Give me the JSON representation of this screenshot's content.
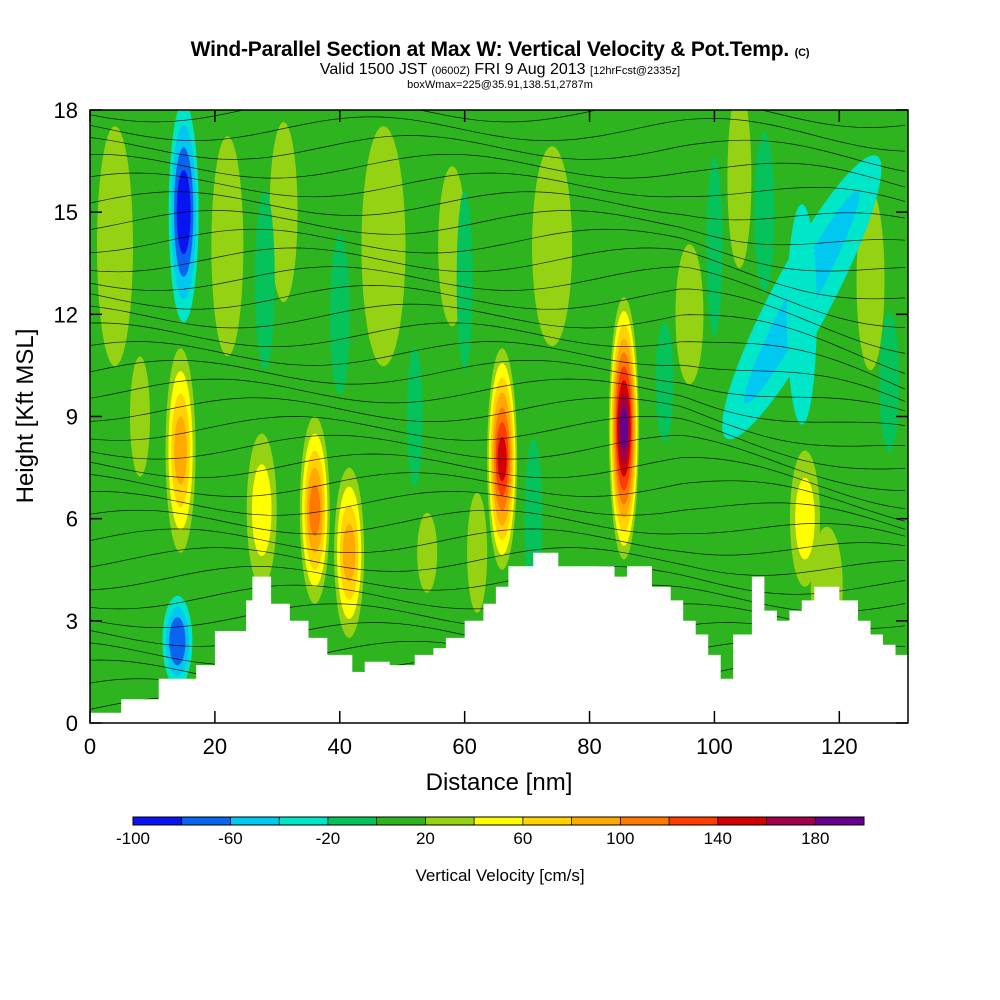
{
  "header": {
    "title": "Wind-Parallel Section at Max W: Vertical Velocity & Pot.Temp.",
    "copyright": "(C)",
    "valid_prefix": "Valid 1500 JST",
    "valid_utc": "(0600Z)",
    "valid_date": "FRI 9 Aug 2013",
    "forecast": "[12hrFcst@2335z]",
    "box_info": "boxWmax=225@35.91,138.51,2787m"
  },
  "chart_data": {
    "type": "heatmap",
    "xlabel": "Distance [nm]",
    "ylabel": "Height [Kft MSL]",
    "xlim": [
      0,
      131
    ],
    "ylim": [
      0,
      18
    ],
    "x_ticks": [
      "0",
      "20",
      "40",
      "60",
      "80",
      "100",
      "120"
    ],
    "y_ticks": [
      "0",
      "3",
      "6",
      "9",
      "12",
      "15",
      "18"
    ],
    "colorbar": {
      "label": "Vertical Velocity [cm/s]",
      "bounds": [
        -100,
        200
      ],
      "tick_labels": [
        "-100",
        "-60",
        "-20",
        "20",
        "60",
        "100",
        "140",
        "180"
      ],
      "colors": [
        "#0a14f0",
        "#0a64f0",
        "#00c8f0",
        "#00e6c8",
        "#05c35a",
        "#2db41e",
        "#96d214",
        "#ffff00",
        "#ffd200",
        "#ffaa00",
        "#ff7800",
        "#ff3c00",
        "#d20000",
        "#a00046",
        "#64008c"
      ]
    },
    "terrain": [
      [
        0,
        0.3
      ],
      [
        5,
        0.3
      ],
      [
        5,
        0.7
      ],
      [
        11,
        0.7
      ],
      [
        11,
        1.3
      ],
      [
        17,
        1.3
      ],
      [
        17,
        1.7
      ],
      [
        20,
        1.7
      ],
      [
        20,
        2.7
      ],
      [
        25,
        2.7
      ],
      [
        25,
        3.6
      ],
      [
        26,
        3.6
      ],
      [
        26,
        4.3
      ],
      [
        29,
        4.3
      ],
      [
        29,
        3.5
      ],
      [
        32,
        3.5
      ],
      [
        32,
        3.0
      ],
      [
        35,
        3.0
      ],
      [
        35,
        2.5
      ],
      [
        38,
        2.5
      ],
      [
        38,
        2.0
      ],
      [
        42,
        2.0
      ],
      [
        42,
        1.5
      ],
      [
        44,
        1.5
      ],
      [
        44,
        1.8
      ],
      [
        48,
        1.8
      ],
      [
        48,
        1.7
      ],
      [
        52,
        1.7
      ],
      [
        52,
        2.0
      ],
      [
        55,
        2.0
      ],
      [
        55,
        2.2
      ],
      [
        57,
        2.2
      ],
      [
        57,
        2.5
      ],
      [
        60,
        2.5
      ],
      [
        60,
        3.0
      ],
      [
        63,
        3.0
      ],
      [
        63,
        3.5
      ],
      [
        65,
        3.5
      ],
      [
        65,
        4.0
      ],
      [
        67,
        4.0
      ],
      [
        67,
        4.6
      ],
      [
        71,
        4.6
      ],
      [
        71,
        5.0
      ],
      [
        75,
        5.0
      ],
      [
        75,
        4.6
      ],
      [
        84,
        4.6
      ],
      [
        84,
        4.3
      ],
      [
        86,
        4.3
      ],
      [
        86,
        4.6
      ],
      [
        90,
        4.6
      ],
      [
        90,
        4.0
      ],
      [
        93,
        4.0
      ],
      [
        93,
        3.6
      ],
      [
        95,
        3.6
      ],
      [
        95,
        3.0
      ],
      [
        97,
        3.0
      ],
      [
        97,
        2.6
      ],
      [
        99,
        2.6
      ],
      [
        99,
        2.0
      ],
      [
        101,
        2.0
      ],
      [
        101,
        1.3
      ],
      [
        103,
        1.3
      ],
      [
        103,
        2.6
      ],
      [
        106,
        2.6
      ],
      [
        106,
        4.3
      ],
      [
        108,
        4.3
      ],
      [
        108,
        3.3
      ],
      [
        110,
        3.3
      ],
      [
        110,
        3.0
      ],
      [
        112,
        3.0
      ],
      [
        112,
        3.3
      ],
      [
        114,
        3.3
      ],
      [
        114,
        3.6
      ],
      [
        116,
        3.6
      ],
      [
        116,
        4.0
      ],
      [
        120,
        4.0
      ],
      [
        120,
        3.6
      ],
      [
        123,
        3.6
      ],
      [
        123,
        3.0
      ],
      [
        125,
        3.0
      ],
      [
        125,
        2.6
      ],
      [
        127,
        2.6
      ],
      [
        127,
        2.3
      ],
      [
        129,
        2.3
      ],
      [
        129,
        2.0
      ],
      [
        131,
        2.0
      ]
    ],
    "updraft_cores": [
      {
        "x": 14.5,
        "y_range": [
          5.0,
          11.0
        ],
        "max_w": 100
      },
      {
        "x": 27.5,
        "y_range": [
          4.0,
          8.5
        ],
        "max_w": 60
      },
      {
        "x": 36.0,
        "y_range": [
          3.5,
          9.0
        ],
        "max_w": 120
      },
      {
        "x": 41.5,
        "y_range": [
          2.5,
          7.5
        ],
        "max_w": 100
      },
      {
        "x": 66.0,
        "y_range": [
          4.5,
          11.0
        ],
        "max_w": 160
      },
      {
        "x": 85.5,
        "y_range": [
          4.8,
          12.5
        ],
        "max_w": 200
      },
      {
        "x": 114.5,
        "y_range": [
          4.0,
          8.0
        ],
        "max_w": 60
      }
    ],
    "downdraft_cores": [
      {
        "x": 15.0,
        "y_range": [
          12.0,
          18.0
        ],
        "min_w": -100
      },
      {
        "x": 14.0,
        "y_range": [
          1.3,
          3.5
        ],
        "min_w": -80
      },
      {
        "x": 114.0,
        "y_range": [
          9.0,
          15.0
        ],
        "min_w": -40
      }
    ]
  }
}
